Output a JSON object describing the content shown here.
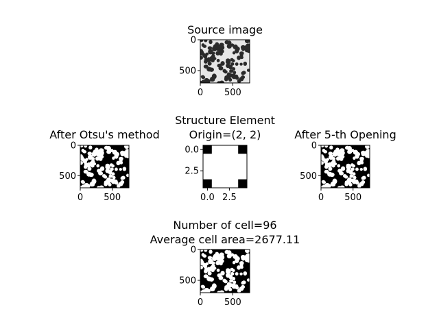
{
  "chart_data": [
    {
      "id": "source",
      "type": "image",
      "title": "Source image",
      "content": "grayscale micrograph: dark blob-shaped cells on a light background",
      "xticks": [
        "0",
        "500"
      ],
      "yticks": [
        "0",
        "500"
      ],
      "xlim": [
        0,
        760
      ],
      "ylim": [
        700,
        0
      ],
      "palette": {
        "background": "#e6e6e6",
        "cells": "#2a2a2a",
        "frame": "#000000"
      }
    },
    {
      "id": "otsu",
      "type": "image",
      "title": "After Otsu's method",
      "content": "binary image: white cells on black background",
      "xticks": [
        "0",
        "500"
      ],
      "yticks": [
        "0",
        "500"
      ],
      "xlim": [
        0,
        760
      ],
      "ylim": [
        700,
        0
      ],
      "palette": {
        "background": "#000000",
        "cells": "#ffffff"
      }
    },
    {
      "id": "structure",
      "type": "image",
      "title_lines": [
        "Structure Element",
        "Origin=(2, 2)"
      ],
      "content": "5x5 binary structuring element (1 = white, 0 = black)",
      "matrix": [
        [
          0,
          1,
          1,
          1,
          0
        ],
        [
          1,
          1,
          1,
          1,
          1
        ],
        [
          1,
          1,
          1,
          1,
          1
        ],
        [
          1,
          1,
          1,
          1,
          1
        ],
        [
          0,
          1,
          1,
          1,
          0
        ]
      ],
      "xticks": [
        "0.0",
        "2.5"
      ],
      "yticks": [
        "0.0",
        "2.5"
      ],
      "xlim": [
        -0.5,
        4.5
      ],
      "ylim": [
        4.5,
        -0.5
      ],
      "palette": {
        "one": "#ffffff",
        "zero": "#000000"
      }
    },
    {
      "id": "opening",
      "type": "image",
      "title": "After 5-th Opening",
      "content": "binary image after morphological opening: white cells on black background",
      "xticks": [
        "0",
        "500"
      ],
      "yticks": [
        "0",
        "500"
      ],
      "xlim": [
        0,
        760
      ],
      "ylim": [
        700,
        0
      ],
      "palette": {
        "background": "#000000",
        "cells": "#ffffff"
      }
    },
    {
      "id": "result",
      "type": "image",
      "title_lines": [
        "Number of cell=96",
        "Average cell area=2677.11"
      ],
      "content": "labelled binary image: white cells on black background",
      "xticks": [
        "0",
        "500"
      ],
      "yticks": [
        "0",
        "500"
      ],
      "xlim": [
        0,
        760
      ],
      "ylim": [
        700,
        0
      ],
      "palette": {
        "background": "#000000",
        "cells": "#ffffff"
      }
    }
  ]
}
